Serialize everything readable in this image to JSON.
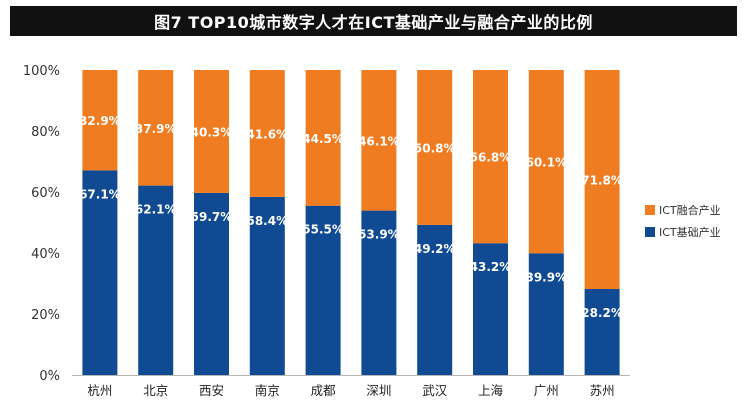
{
  "chart_data": {
    "type": "bar",
    "stacked": true,
    "title": "图7  TOP10城市数字人才在ICT基础产业与融合产业的比例",
    "categories": [
      "杭州",
      "北京",
      "西安",
      "南京",
      "成都",
      "深圳",
      "武汉",
      "上海",
      "广州",
      "苏州"
    ],
    "series": [
      {
        "name": "ICT基础产业",
        "color": "#0f4a92",
        "values": [
          67.1,
          62.1,
          59.7,
          58.4,
          55.5,
          53.9,
          49.2,
          43.2,
          39.9,
          28.2
        ],
        "labels": [
          "67.1%",
          "62.1%",
          "59.7%",
          "58.4%",
          "55.5%",
          "53.9%",
          "49.2%",
          "43.2%",
          "39.9%",
          "28.2%"
        ]
      },
      {
        "name": "ICT融合产业",
        "color": "#f07c21",
        "values": [
          32.9,
          37.9,
          40.3,
          41.6,
          44.5,
          46.1,
          50.8,
          56.8,
          60.1,
          71.8
        ],
        "labels": [
          "32.9%",
          "37.9%",
          "40.3%",
          "41.6%",
          "44.5%",
          "46.1%",
          "50.8%",
          "56.8%",
          "60.1%",
          "71.8%"
        ]
      }
    ],
    "ylim": [
      0,
      100
    ],
    "yticks": [
      0,
      20,
      40,
      60,
      80,
      100
    ],
    "ytick_labels": [
      "0%",
      "20%",
      "40%",
      "60%",
      "80%",
      "100%"
    ],
    "legend": {
      "position": "right",
      "order": [
        "ICT融合产业",
        "ICT基础产业"
      ]
    },
    "grid": false
  }
}
